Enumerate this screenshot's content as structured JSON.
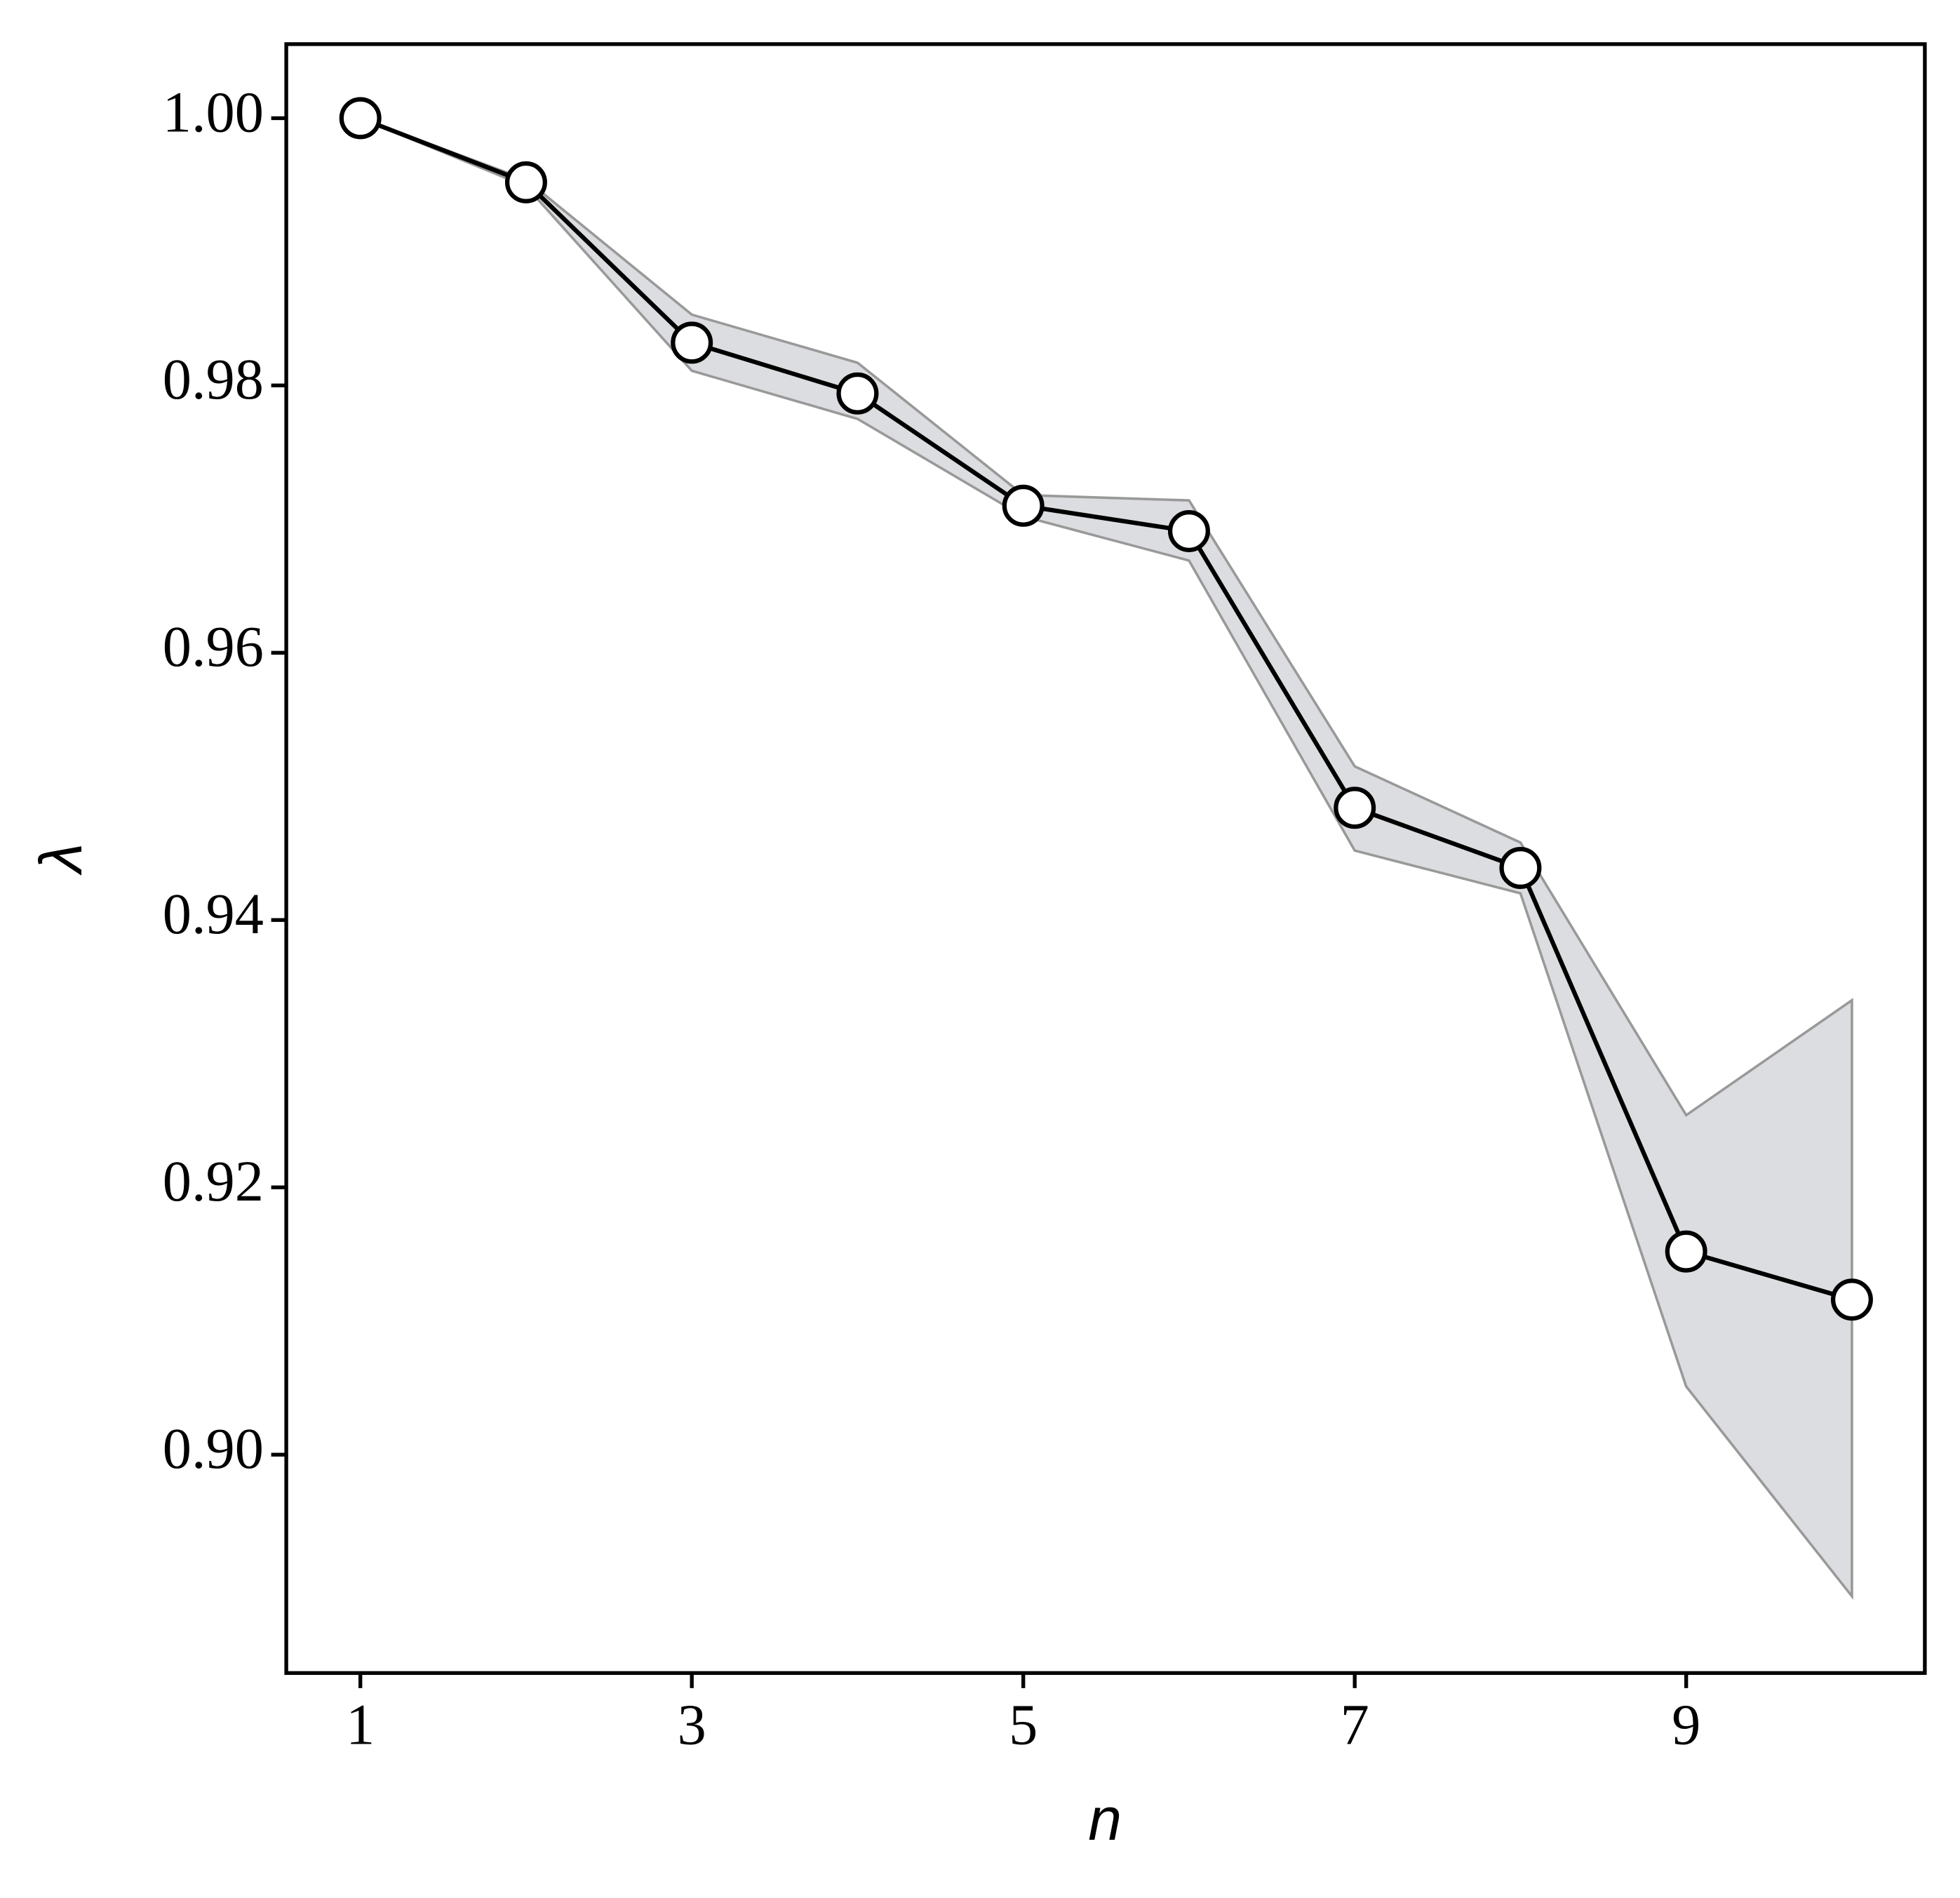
{
  "chart_data": {
    "type": "line",
    "x_label": "n",
    "y_label": "λ",
    "x": [
      1,
      2,
      3,
      4,
      5,
      6,
      7,
      8,
      9,
      10
    ],
    "series": [
      {
        "color": "#000000",
        "band_color": "#dcdde0",
        "values": [
          1.0,
          0.9952,
          0.9832,
          0.9794,
          0.971,
          0.9691,
          0.9484,
          0.9439,
          0.9152,
          0.9116
        ],
        "upper": [
          1.0,
          0.9954,
          0.9853,
          0.9817,
          0.9718,
          0.9714,
          0.9515,
          0.9458,
          0.9254,
          0.934
        ],
        "lower": [
          1.0,
          0.9949,
          0.9811,
          0.9775,
          0.9702,
          0.9669,
          0.9452,
          0.942,
          0.9051,
          0.8894
        ]
      }
    ],
    "xlim": [
      0.553,
      10.44
    ],
    "xticks": [
      1,
      3,
      5,
      7,
      9
    ],
    "ylim": [
      0.88366,
      1.00554
    ],
    "yticks": [
      {
        "value": 0.9,
        "label": "0.90"
      },
      {
        "value": 0.92,
        "label": "0.92"
      },
      {
        "value": 0.94,
        "label": "0.94"
      },
      {
        "value": 0.96,
        "label": "0.96"
      },
      {
        "value": 0.98,
        "label": "0.98"
      },
      {
        "value": 1.0,
        "label": "1.00"
      }
    ]
  }
}
